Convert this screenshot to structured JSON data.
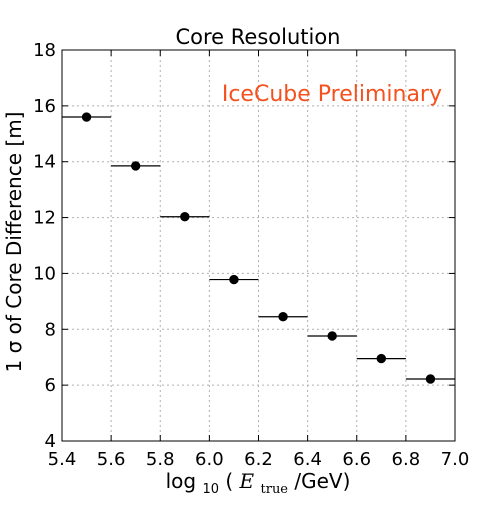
{
  "chart_data": {
    "type": "scatter",
    "title": "Core Resolution",
    "xlabel": "log10(E_true/GeV)",
    "xlabel_parts": {
      "prefix": "log",
      "prefix_sub": "10",
      "open": "(",
      "var": "E",
      "var_sub": "true",
      "suffix": "/GeV)"
    },
    "ylabel": "1 σ of Core Difference [m]",
    "xlim": [
      5.4,
      7.0
    ],
    "ylim": [
      4,
      18
    ],
    "xticks": [
      5.4,
      5.6,
      5.8,
      6.0,
      6.2,
      6.4,
      6.6,
      6.8,
      7.0
    ],
    "xtick_labels": [
      "5.4",
      "5.6",
      "5.8",
      "6.0",
      "6.2",
      "6.4",
      "6.6",
      "6.8",
      "7.0"
    ],
    "yticks": [
      4,
      6,
      8,
      10,
      12,
      14,
      16,
      18
    ],
    "ytick_labels": [
      "4",
      "6",
      "8",
      "10",
      "12",
      "14",
      "16",
      "18"
    ],
    "grid": true,
    "annotation": {
      "text": "IceCube Preliminary",
      "color": "#f4511e",
      "placement": "top-right"
    },
    "series": [
      {
        "marker_color": "#000000",
        "points": [
          {
            "x": 5.5,
            "y": 15.6,
            "xerr": 0.1
          },
          {
            "x": 5.7,
            "y": 13.85,
            "xerr": 0.1
          },
          {
            "x": 5.9,
            "y": 12.03,
            "xerr": 0.1
          },
          {
            "x": 6.1,
            "y": 9.78,
            "xerr": 0.1
          },
          {
            "x": 6.3,
            "y": 8.45,
            "xerr": 0.1
          },
          {
            "x": 6.5,
            "y": 7.76,
            "xerr": 0.1
          },
          {
            "x": 6.7,
            "y": 6.95,
            "xerr": 0.1
          },
          {
            "x": 6.9,
            "y": 6.22,
            "xerr": 0.1
          }
        ]
      }
    ]
  }
}
